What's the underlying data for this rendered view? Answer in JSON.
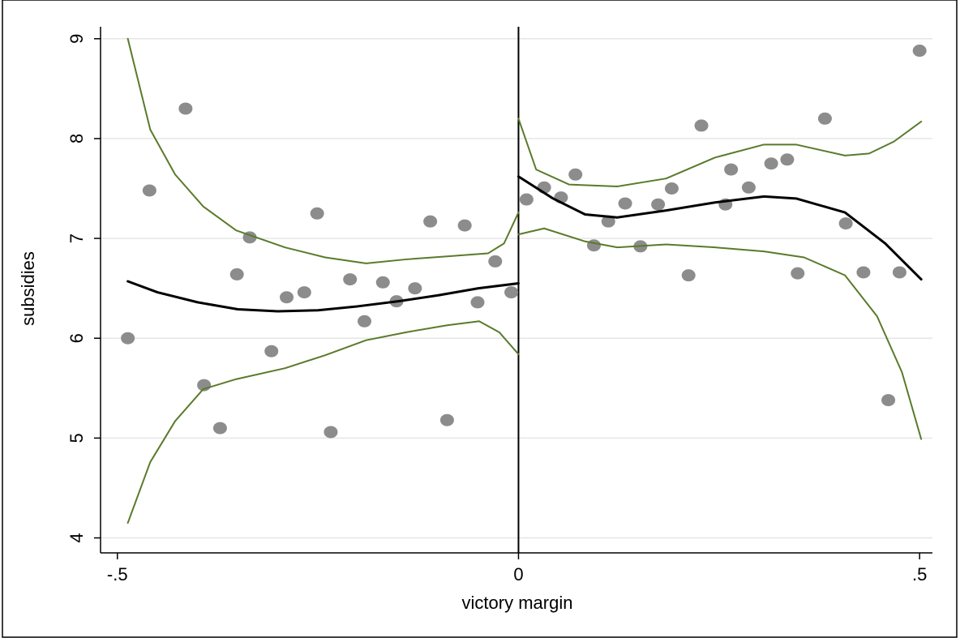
{
  "chart_data": {
    "type": "scatter",
    "xlabel": "victory margin",
    "ylabel": "subsidies",
    "xlim": [
      -0.521,
      0.516
    ],
    "ylim": [
      3.85,
      9.12
    ],
    "xticks": [
      {
        "value": -0.5,
        "label": "-.5"
      },
      0,
      {
        "value": 0.5,
        "label": ".5"
      }
    ],
    "yticks": [
      4,
      5,
      6,
      7,
      8,
      9
    ],
    "grid": true,
    "cutoff": 0,
    "series": [
      {
        "style": "points",
        "color": "#8c8c8c",
        "x": [
          -0.487,
          -0.46,
          -0.415,
          -0.392,
          -0.372,
          -0.351,
          -0.335,
          -0.308,
          -0.289,
          -0.267,
          -0.251,
          -0.234,
          -0.21,
          -0.192,
          -0.169,
          -0.152,
          -0.129,
          -0.11,
          -0.089,
          -0.067,
          -0.051,
          -0.029,
          -0.009
        ],
        "values": [
          6.0,
          7.48,
          8.3,
          5.53,
          5.1,
          6.64,
          7.01,
          5.87,
          6.41,
          6.46,
          7.25,
          5.06,
          6.59,
          6.17,
          6.56,
          6.37,
          6.5,
          7.17,
          5.18,
          7.13,
          6.36,
          6.77,
          6.46
        ]
      },
      {
        "style": "points",
        "color": "#8c8c8c",
        "x": [
          0.01,
          0.032,
          0.053,
          0.071,
          0.094,
          0.112,
          0.133,
          0.152,
          0.174,
          0.191,
          0.212,
          0.228,
          0.258,
          0.265,
          0.287,
          0.315,
          0.335,
          0.348,
          0.382,
          0.408,
          0.43,
          0.461,
          0.475,
          0.5
        ],
        "values": [
          7.39,
          7.51,
          7.41,
          7.64,
          6.93,
          7.17,
          7.35,
          6.92,
          7.34,
          7.5,
          6.63,
          8.13,
          7.34,
          7.69,
          7.51,
          7.75,
          7.79,
          6.65,
          8.2,
          7.15,
          6.66,
          5.38,
          6.66,
          8.88
        ]
      },
      {
        "style": "line",
        "color": "#000000",
        "width": 3,
        "x": [
          -0.487,
          -0.45,
          -0.4,
          -0.35,
          -0.3,
          -0.25,
          -0.2,
          -0.15,
          -0.1,
          -0.05,
          0
        ],
        "values": [
          6.57,
          6.46,
          6.36,
          6.29,
          6.27,
          6.28,
          6.32,
          6.37,
          6.43,
          6.5,
          6.55
        ]
      },
      {
        "style": "line",
        "color": "#5a7a2a",
        "width": 2,
        "x": [
          -0.487,
          -0.459,
          -0.428,
          -0.393,
          -0.352,
          -0.291,
          -0.241,
          -0.19,
          -0.14,
          -0.089,
          -0.038,
          -0.018,
          0
        ],
        "values": [
          9.0,
          8.09,
          7.64,
          7.32,
          7.08,
          6.91,
          6.81,
          6.75,
          6.79,
          6.82,
          6.85,
          6.95,
          7.26
        ]
      },
      {
        "style": "line",
        "color": "#5a7a2a",
        "width": 2,
        "x": [
          -0.487,
          -0.459,
          -0.428,
          -0.393,
          -0.352,
          -0.291,
          -0.241,
          -0.19,
          -0.14,
          -0.089,
          -0.049,
          -0.024,
          0
        ],
        "values": [
          4.15,
          4.76,
          5.17,
          5.49,
          5.59,
          5.7,
          5.83,
          5.98,
          6.06,
          6.13,
          6.17,
          6.06,
          5.84
        ]
      },
      {
        "style": "line",
        "color": "#000000",
        "width": 3,
        "x": [
          0,
          0.043,
          0.083,
          0.123,
          0.184,
          0.245,
          0.306,
          0.346,
          0.407,
          0.457,
          0.502
        ],
        "values": [
          7.62,
          7.4,
          7.24,
          7.21,
          7.28,
          7.36,
          7.42,
          7.4,
          7.26,
          6.95,
          6.59
        ]
      },
      {
        "style": "line",
        "color": "#5a7a2a",
        "width": 2,
        "x": [
          0,
          0.022,
          0.063,
          0.123,
          0.184,
          0.245,
          0.306,
          0.346,
          0.407,
          0.437,
          0.468,
          0.502
        ],
        "values": [
          8.2,
          7.69,
          7.54,
          7.52,
          7.6,
          7.81,
          7.94,
          7.94,
          7.83,
          7.85,
          7.97,
          8.17
        ]
      },
      {
        "style": "line",
        "color": "#5a7a2a",
        "width": 2,
        "x": [
          0,
          0.032,
          0.083,
          0.123,
          0.184,
          0.245,
          0.306,
          0.356,
          0.407,
          0.447,
          0.478,
          0.502
        ],
        "values": [
          7.04,
          7.1,
          6.97,
          6.91,
          6.94,
          6.91,
          6.87,
          6.81,
          6.63,
          6.22,
          5.66,
          4.99
        ]
      }
    ]
  }
}
